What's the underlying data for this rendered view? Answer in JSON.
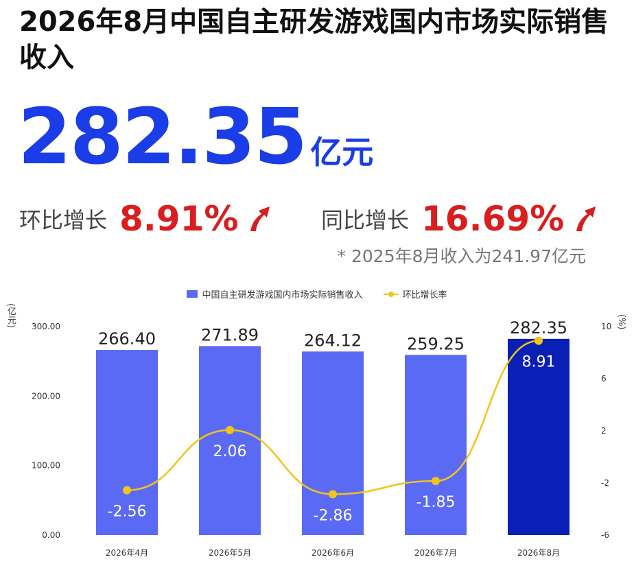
{
  "title": "2026年8月中国自主研发游戏国内市场实际销售收入",
  "headline": {
    "value": "282.35",
    "unit": "亿元"
  },
  "growth": {
    "mom_label": "环比增长",
    "mom_value": "8.91%",
    "yoy_label": "同比增长",
    "yoy_value": "16.69%"
  },
  "footnote": "* 2025年8月收入为241.97亿元",
  "colors": {
    "bar": "#5b6af5",
    "bar_highlight": "#0a1fb5",
    "line": "#f2c418",
    "accent_blue": "#1b3de8",
    "accent_red": "#d81e1e"
  },
  "icons": {
    "growth_arrow": "red-up-arrow-icon"
  },
  "chart_data": {
    "type": "bar+line",
    "categories": [
      "2026年4月",
      "2026年5月",
      "2026年6月",
      "2026年7月",
      "2026年8月"
    ],
    "series": [
      {
        "name": "中国自主研发游戏国内市场实际销售收入",
        "type": "bar",
        "axis": "left",
        "values": [
          266.4,
          271.89,
          264.12,
          259.25,
          282.35
        ],
        "labels": [
          "266.40",
          "271.89",
          "264.12",
          "259.25",
          "282.35"
        ]
      },
      {
        "name": "环比增长率",
        "type": "line",
        "axis": "right",
        "values": [
          -2.56,
          2.06,
          -2.86,
          -1.85,
          8.91
        ],
        "labels": [
          "-2.56",
          "2.06",
          "-2.86",
          "-1.85",
          "8.91"
        ]
      }
    ],
    "highlight_index": 4,
    "y_left": {
      "unit": "亿元",
      "range": [
        0,
        300
      ],
      "ticks": [
        "0.00",
        "100.00",
        "200.00",
        "300.00"
      ]
    },
    "y_right": {
      "unit": "%",
      "range": [
        -6,
        10
      ],
      "ticks": [
        "-6",
        "-2",
        "2",
        "6",
        "10"
      ]
    },
    "legend_position": "top-center",
    "grid": false
  }
}
